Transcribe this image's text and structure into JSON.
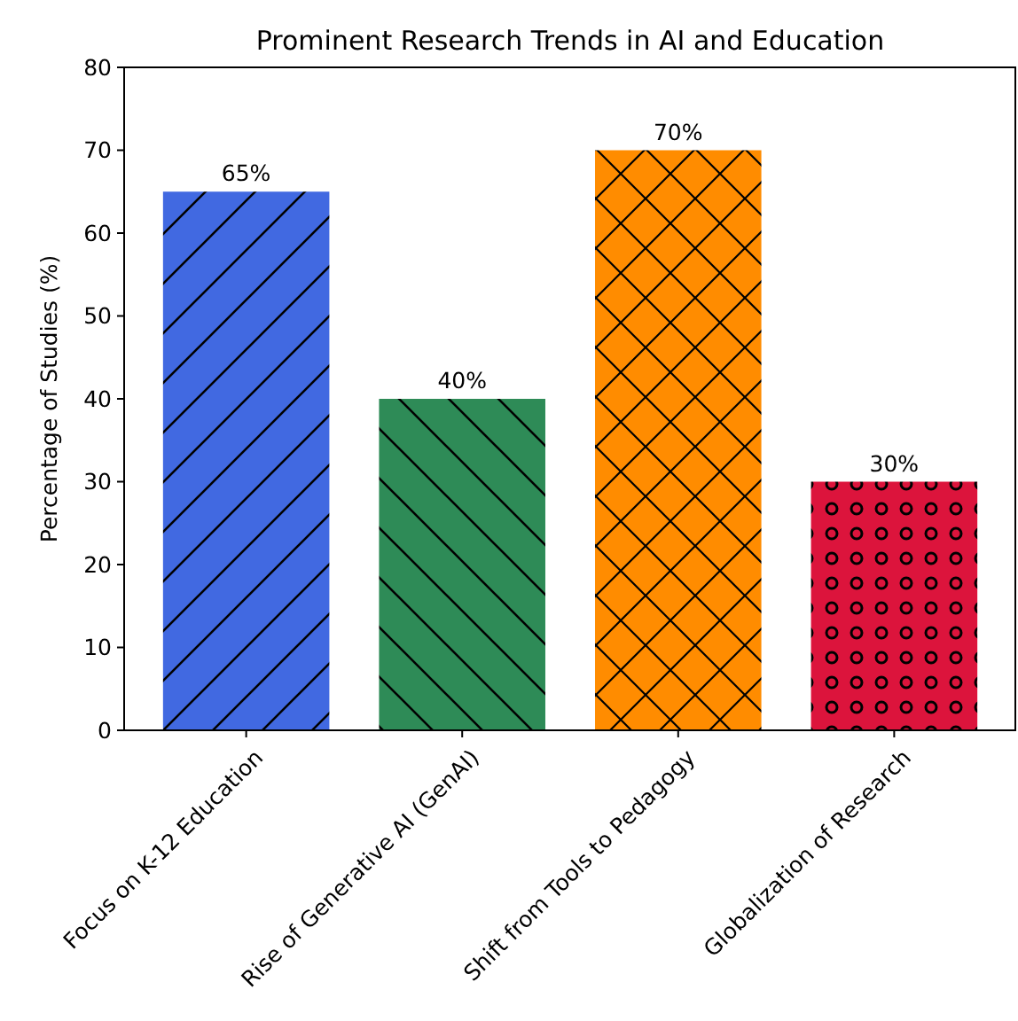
{
  "chart_data": {
    "type": "bar",
    "title": "Prominent Research Trends in AI and Education",
    "ylabel": "Percentage of Studies (%)",
    "categories": [
      "Focus on K-12 Education",
      "Rise of Generative AI (GenAI)",
      "Shift from Tools to Pedagogy",
      "Globalization of Research"
    ],
    "values": [
      65,
      40,
      70,
      30
    ],
    "colors": [
      "#4169e1",
      "#2e8b57",
      "#ff8c00",
      "#dc143c"
    ],
    "value_labels": [
      "65%",
      "40%",
      "70%",
      "30%"
    ],
    "ylim": [
      0,
      80
    ],
    "yticks": [
      0,
      10,
      20,
      30,
      40,
      50,
      60,
      70,
      80
    ]
  }
}
